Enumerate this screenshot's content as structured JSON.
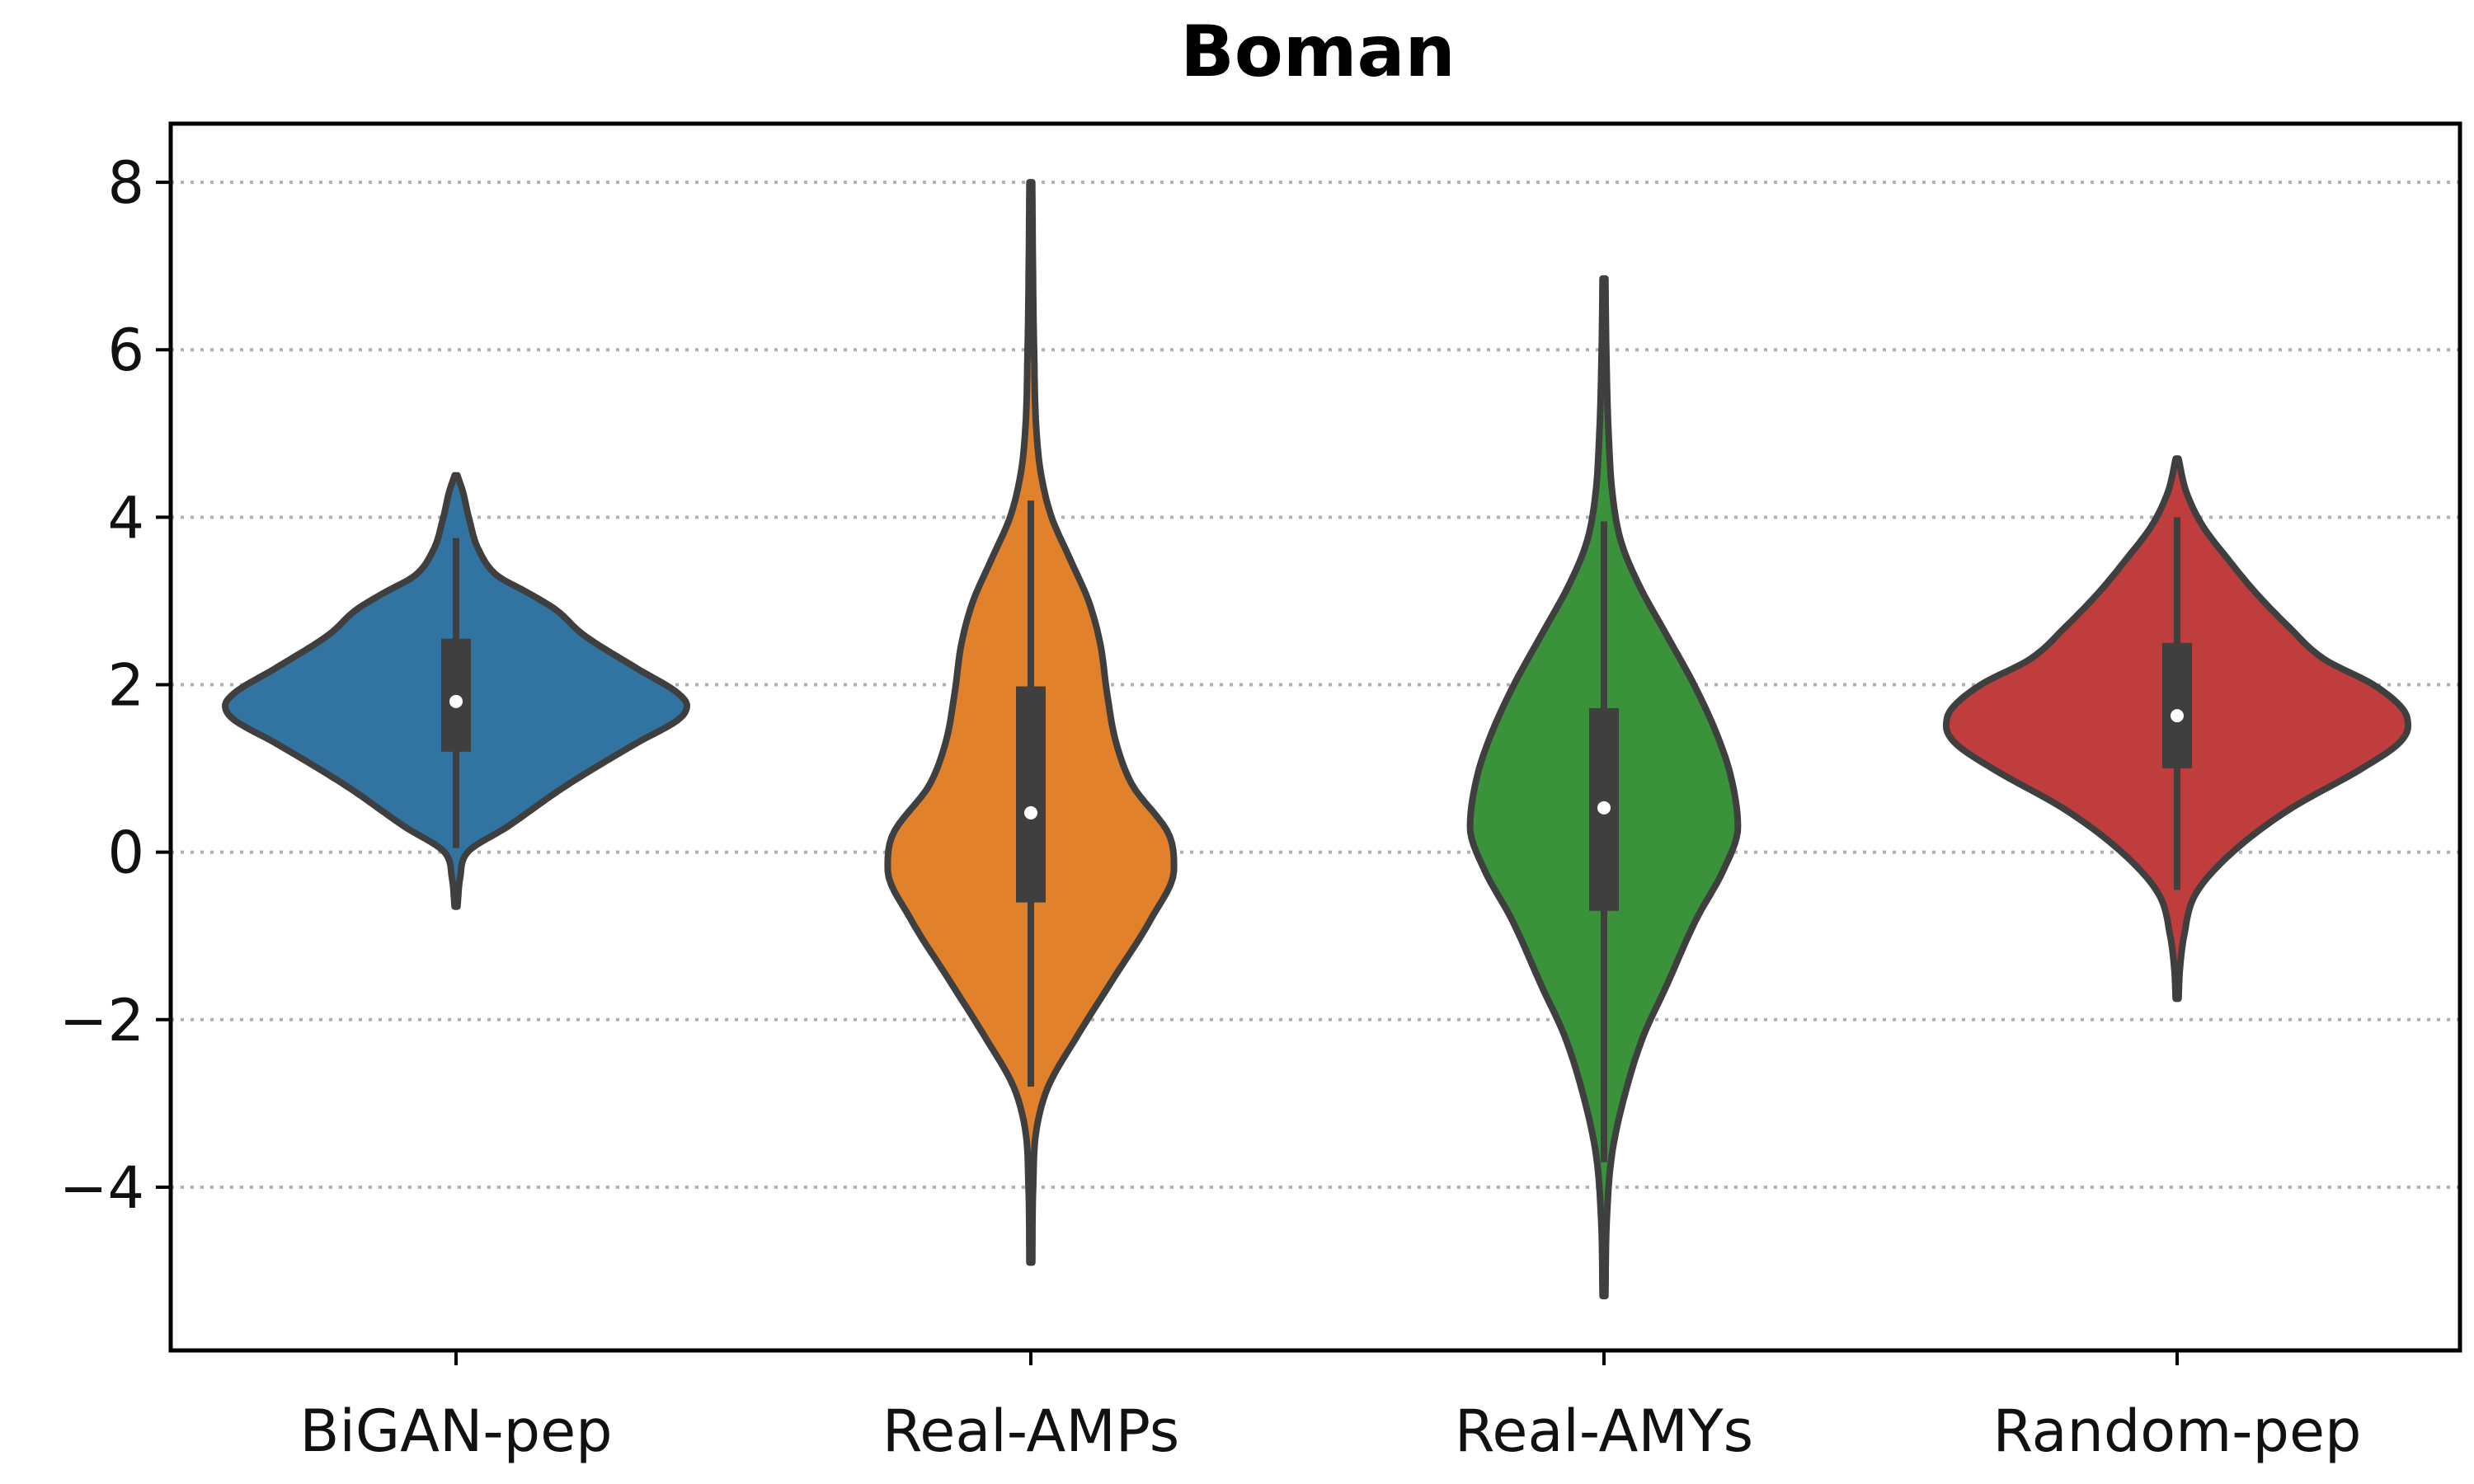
{
  "chart_data": {
    "type": "violin",
    "title": "Boman",
    "xlabel": "",
    "ylabel": "",
    "ylim": [
      -5.95,
      8.7
    ],
    "yticks": [
      {
        "value": -4,
        "label": "−4"
      },
      {
        "value": -2,
        "label": "−2"
      },
      {
        "value": 0,
        "label": "0"
      },
      {
        "value": 2,
        "label": "2"
      },
      {
        "value": 4,
        "label": "4"
      },
      {
        "value": 6,
        "label": "6"
      },
      {
        "value": 8,
        "label": "8"
      }
    ],
    "grid": {
      "axis": "y",
      "style": "dotted",
      "color": "#b0b0b0"
    },
    "categories": [
      "BiGAN-pep",
      "Real-AMPs",
      "Real-AMYs",
      "Random-pep"
    ],
    "series": [
      {
        "category": "BiGAN-pep",
        "color": "#3274a1",
        "min": -0.65,
        "max": 4.5,
        "q1": 1.2,
        "median": 1.8,
        "q3": 2.55,
        "whisker_low": 0.05,
        "whisker_high": 3.75,
        "density": [
          [
            -0.65,
            0.006
          ],
          [
            -0.3,
            0.018
          ],
          [
            0.0,
            0.05
          ],
          [
            0.3,
            0.22
          ],
          [
            0.8,
            0.48
          ],
          [
            1.3,
            0.78
          ],
          [
            1.6,
            0.97
          ],
          [
            1.75,
            1.0
          ],
          [
            1.9,
            0.96
          ],
          [
            2.2,
            0.78
          ],
          [
            2.6,
            0.55
          ],
          [
            2.9,
            0.43
          ],
          [
            3.1,
            0.31
          ],
          [
            3.3,
            0.18
          ],
          [
            3.6,
            0.1
          ],
          [
            4.0,
            0.055
          ],
          [
            4.3,
            0.03
          ],
          [
            4.5,
            0.006
          ]
        ]
      },
      {
        "category": "Real-AMPs",
        "color": "#e1812c",
        "min": -4.9,
        "max": 8.0,
        "q1": -0.6,
        "median": 0.47,
        "q3": 1.98,
        "whisker_low": -2.8,
        "whisker_high": 4.2,
        "density": [
          [
            -4.9,
            0.006
          ],
          [
            -4.0,
            0.01
          ],
          [
            -3.3,
            0.025
          ],
          [
            -2.8,
            0.075
          ],
          [
            -2.2,
            0.2
          ],
          [
            -1.5,
            0.36
          ],
          [
            -0.8,
            0.52
          ],
          [
            -0.2,
            0.62
          ],
          [
            0.2,
            0.6
          ],
          [
            0.8,
            0.44
          ],
          [
            1.3,
            0.37
          ],
          [
            1.9,
            0.33
          ],
          [
            2.5,
            0.3
          ],
          [
            3.0,
            0.25
          ],
          [
            3.5,
            0.17
          ],
          [
            4.0,
            0.09
          ],
          [
            4.5,
            0.045
          ],
          [
            5.0,
            0.025
          ],
          [
            6.0,
            0.014
          ],
          [
            7.0,
            0.009
          ],
          [
            8.0,
            0.006
          ]
        ]
      },
      {
        "category": "Real-AMYs",
        "color": "#3a923a",
        "min": -5.3,
        "max": 6.85,
        "q1": -0.7,
        "median": 0.53,
        "q3": 1.72,
        "whisker_low": -3.7,
        "whisker_high": 3.95,
        "density": [
          [
            -5.3,
            0.006
          ],
          [
            -4.4,
            0.012
          ],
          [
            -3.6,
            0.035
          ],
          [
            -2.9,
            0.09
          ],
          [
            -2.2,
            0.17
          ],
          [
            -1.6,
            0.27
          ],
          [
            -0.8,
            0.4
          ],
          [
            -0.2,
            0.52
          ],
          [
            0.3,
            0.58
          ],
          [
            0.9,
            0.55
          ],
          [
            1.4,
            0.49
          ],
          [
            2.0,
            0.39
          ],
          [
            2.6,
            0.27
          ],
          [
            3.2,
            0.15
          ],
          [
            3.7,
            0.075
          ],
          [
            4.2,
            0.04
          ],
          [
            5.0,
            0.02
          ],
          [
            6.0,
            0.01
          ],
          [
            6.85,
            0.006
          ]
        ]
      },
      {
        "category": "Random-pep",
        "color": "#c03d3e",
        "min": -1.75,
        "max": 4.7,
        "q1": 1.0,
        "median": 1.63,
        "q3": 2.5,
        "whisker_low": -0.45,
        "whisker_high": 4.0,
        "density": [
          [
            -1.75,
            0.006
          ],
          [
            -1.4,
            0.012
          ],
          [
            -1.0,
            0.03
          ],
          [
            -0.5,
            0.08
          ],
          [
            0.0,
            0.24
          ],
          [
            0.5,
            0.48
          ],
          [
            1.0,
            0.8
          ],
          [
            1.3,
            0.96
          ],
          [
            1.5,
            1.0
          ],
          [
            1.7,
            0.98
          ],
          [
            2.0,
            0.85
          ],
          [
            2.3,
            0.64
          ],
          [
            2.7,
            0.48
          ],
          [
            3.1,
            0.34
          ],
          [
            3.5,
            0.22
          ],
          [
            3.9,
            0.11
          ],
          [
            4.3,
            0.04
          ],
          [
            4.7,
            0.006
          ]
        ]
      }
    ]
  }
}
